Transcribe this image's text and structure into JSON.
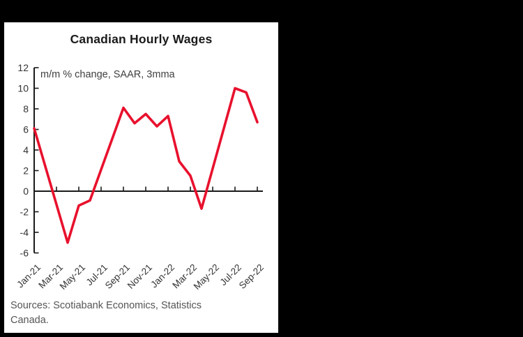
{
  "frame": {
    "background_color": "#000000",
    "panel_color": "#ffffff"
  },
  "chart_data": {
    "type": "line",
    "title": "Canadian Hourly Wages",
    "subtitle": "m/m % change, SAAR, 3mma",
    "xlabel": "",
    "ylabel": "",
    "categories": [
      "Jan-21",
      "Feb-21",
      "Mar-21",
      "Apr-21",
      "May-21",
      "Jun-21",
      "Jul-21",
      "Aug-21",
      "Sep-21",
      "Oct-21",
      "Nov-21",
      "Dec-21",
      "Jan-22",
      "Feb-22",
      "Mar-22",
      "Apr-22",
      "May-22",
      "Jun-22",
      "Jul-22",
      "Aug-22",
      "Sep-22"
    ],
    "x_tick_labels": [
      "Jan-21",
      "Mar-21",
      "May-21",
      "Jul-21",
      "Sep-21",
      "Nov-21",
      "Jan-22",
      "Mar-22",
      "May-22",
      "Jul-22",
      "Sep-22"
    ],
    "series": [
      {
        "name": "Canadian hourly wages (m/m % change, SAAR, 3mma)",
        "values": [
          6.1,
          2.4,
          -1.3,
          -5.0,
          -1.4,
          -0.9,
          2.1,
          5.1,
          8.1,
          6.6,
          7.5,
          6.3,
          7.3,
          2.9,
          1.5,
          -1.7,
          2.2,
          6.1,
          10.0,
          9.6,
          6.7
        ]
      }
    ],
    "ylim": [
      -6,
      12
    ],
    "yticks": [
      -6,
      -4,
      -2,
      0,
      2,
      4,
      6,
      8,
      10,
      12
    ],
    "grid": false,
    "legend": false,
    "line_color": "#e8112d",
    "axis_color": "#1a1a1a",
    "source_lines": [
      "Sources: Scotiabank Economics, Statistics",
      "Canada."
    ]
  }
}
